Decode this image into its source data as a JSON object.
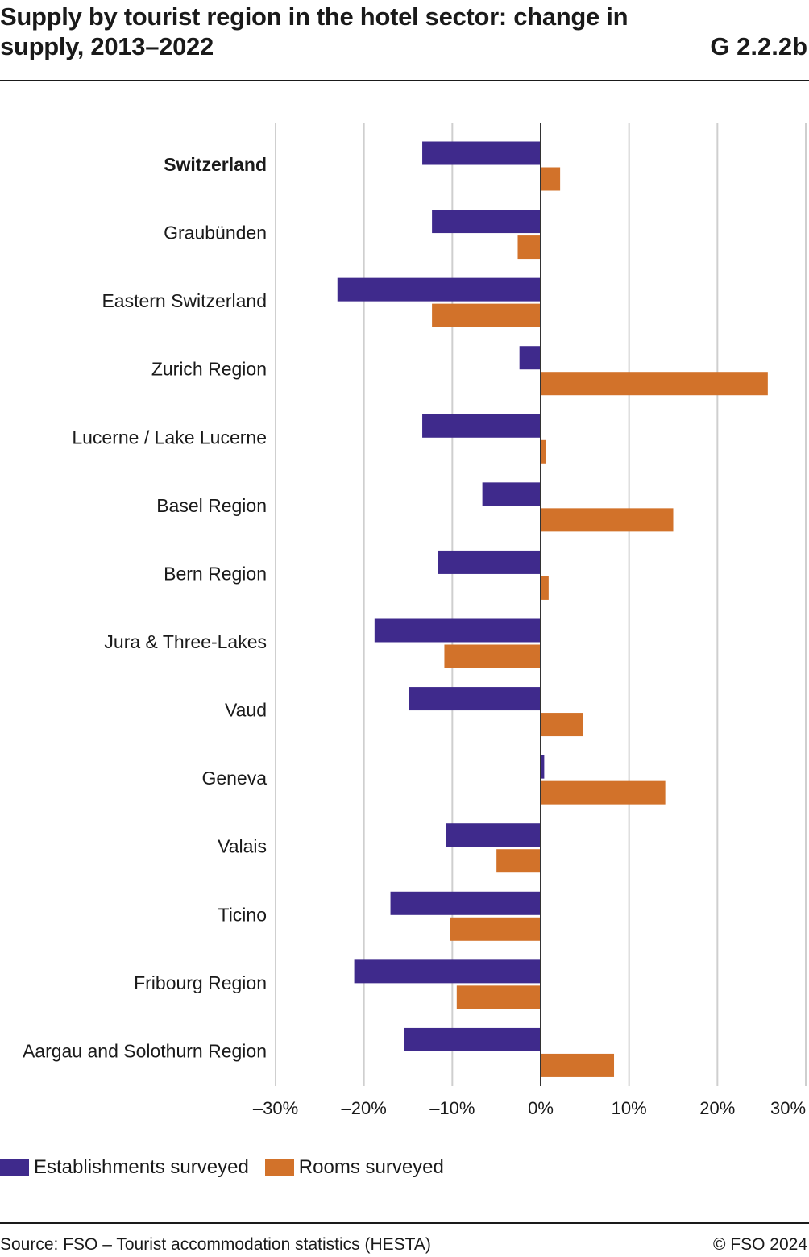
{
  "header": {
    "title": "Supply by tourist region in the hotel sector: change in supply, 2013–2022",
    "code": "G 2.2.2b"
  },
  "colors": {
    "establishments": "#3f2a8c",
    "rooms": "#d2722a",
    "grid": "#cfcfcf",
    "zero_line": "#333333"
  },
  "chart_data": {
    "type": "bar",
    "orientation": "horizontal",
    "categories": [
      "Switzerland",
      "Graubünden",
      "Eastern Switzerland",
      "Zurich Region",
      "Lucerne / Lake Lucerne",
      "Basel Region",
      "Bern Region",
      "Jura & Three-Lakes",
      "Vaud",
      "Geneva",
      "Valais",
      "Ticino",
      "Fribourg Region",
      "Aargau and Solothurn Region"
    ],
    "bold_categories": [
      "Switzerland"
    ],
    "series": [
      {
        "name": "Establishments surveyed",
        "color": "#3f2a8c",
        "values": [
          -13.4,
          -12.3,
          -23.0,
          -2.4,
          -13.4,
          -6.6,
          -11.6,
          -18.8,
          -14.9,
          0.4,
          -10.7,
          -17.0,
          -21.1,
          -15.5
        ]
      },
      {
        "name": "Rooms surveyed",
        "color": "#d2722a",
        "values": [
          2.2,
          -2.6,
          -12.3,
          25.7,
          0.6,
          15.0,
          0.9,
          -10.9,
          4.8,
          14.1,
          -5.0,
          -10.3,
          -9.5,
          8.3
        ]
      }
    ],
    "xlim": [
      -30,
      30
    ],
    "xticks": [
      -30,
      -20,
      -10,
      0,
      10,
      20,
      30
    ],
    "xtick_labels": [
      "–30%",
      "–20%",
      "–10%",
      "0%",
      "10%",
      "20%",
      "30%"
    ],
    "title": "Supply by tourist region in the hotel sector: change in supply, 2013–2022",
    "xlabel": "",
    "ylabel": "",
    "grid": true,
    "legend_position": "bottom-left"
  },
  "legend": {
    "establishments_label": "Establishments surveyed",
    "rooms_label": "Rooms surveyed"
  },
  "footer": {
    "source": "Source: FSO – Tourist accommodation statistics (HESTA)",
    "copyright": "© FSO 2024"
  }
}
